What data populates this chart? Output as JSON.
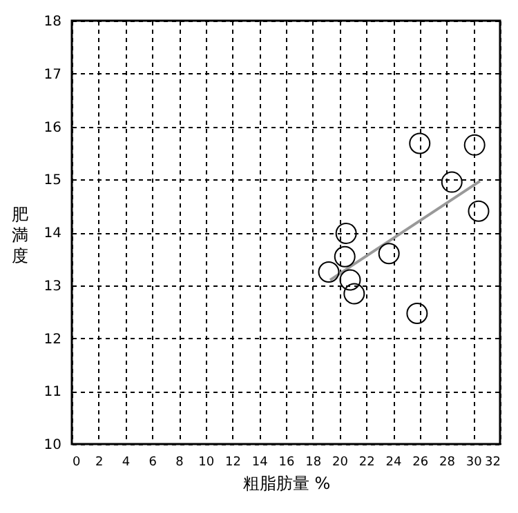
{
  "chart_data": {
    "type": "scatter",
    "xlabel": "粗脂肪量  %",
    "ylabel": "肥満度",
    "xlim": [
      0,
      32
    ],
    "xticks": [
      0,
      2,
      4,
      6,
      8,
      10,
      12,
      14,
      16,
      18,
      20,
      22,
      24,
      26,
      28,
      30,
      32
    ],
    "ylim": [
      10,
      18
    ],
    "yticks": [
      10,
      11,
      12,
      13,
      14,
      15,
      16,
      17,
      18
    ],
    "grid": true,
    "series": [
      {
        "color": "#000000",
        "marker": "circle",
        "x": [
          26.0,
          30.1,
          28.4,
          30.4,
          20.5,
          20.4,
          23.7,
          19.2,
          20.8,
          21.1,
          25.8
        ],
        "values": [
          15.68,
          15.65,
          14.95,
          14.4,
          13.98,
          13.54,
          13.6,
          13.25,
          13.1,
          12.84,
          12.47
        ]
      },
      {
        "type": "line",
        "color": "#999999",
        "marker": "none",
        "line_style": "solid",
        "x": [
          19.3,
          30.5
        ],
        "values": [
          13.1,
          14.97
        ]
      }
    ]
  }
}
